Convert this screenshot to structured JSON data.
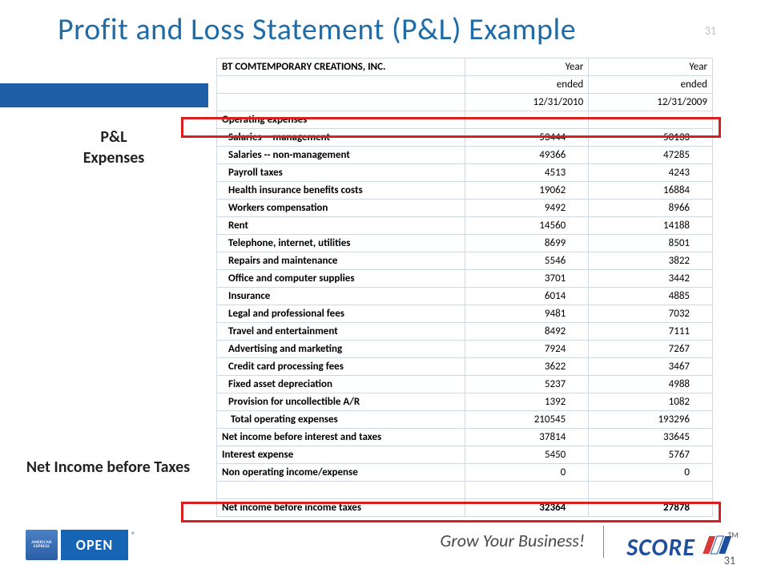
{
  "title": "Profit and Loss Statement (P&L) Example",
  "page_number": "31",
  "side_labels": {
    "expenses": "P&L\nExpenses",
    "netincome": "Net Income before Taxes"
  },
  "table": {
    "header_rows": [
      {
        "label": "BT COMTEMPORARY CREATIONS, INC.",
        "c1": "Year",
        "c2": "Year",
        "bold": true,
        "right": true
      },
      {
        "label": "",
        "c1": "ended",
        "c2": "ended",
        "right": true
      },
      {
        "label": "",
        "c1": "12/31/2010",
        "c2": "12/31/2009",
        "right": true
      }
    ],
    "section_header": "Operating expenses",
    "rows": [
      {
        "label": "Salaries -- management",
        "c1": "53444",
        "c2": "50133"
      },
      {
        "label": "Salaries -- non-management",
        "c1": "49366",
        "c2": "47285"
      },
      {
        "label": "Payroll taxes",
        "c1": "4513",
        "c2": "4243"
      },
      {
        "label": "Health insurance benefits costs",
        "c1": "19062",
        "c2": "16884"
      },
      {
        "label": "Workers compensation",
        "c1": "9492",
        "c2": "8966"
      },
      {
        "label": "Rent",
        "c1": "14560",
        "c2": "14188"
      },
      {
        "label": "Telephone, internet, utilities",
        "c1": "8699",
        "c2": "8501"
      },
      {
        "label": "Repairs and maintenance",
        "c1": "5546",
        "c2": "3822"
      },
      {
        "label": "Office and computer supplies",
        "c1": "3701",
        "c2": "3442"
      },
      {
        "label": "Insurance",
        "c1": "6014",
        "c2": "4885"
      },
      {
        "label": "Legal and professional fees",
        "c1": "9481",
        "c2": "7032"
      },
      {
        "label": "Travel and entertainment",
        "c1": "8492",
        "c2": "7111"
      },
      {
        "label": "Advertising and marketing",
        "c1": "7924",
        "c2": "7267"
      },
      {
        "label": "Credit card processing fees",
        "c1": "3622",
        "c2": "3467"
      },
      {
        "label": "Fixed asset depreciation",
        "c1": "5237",
        "c2": "4988"
      },
      {
        "label": "Provision for uncollectible A/R",
        "c1": "1392",
        "c2": "1082"
      },
      {
        "label": " Total operating expenses",
        "c1": "210545",
        "c2": "193296"
      }
    ],
    "post_rows": [
      {
        "label": "Net income before interest and taxes",
        "c1": "37814",
        "c2": "33645"
      },
      {
        "label": "Interest expense",
        "c1": "5450",
        "c2": "5767"
      },
      {
        "label": "Non operating income/expense",
        "c1": "0",
        "c2": "0"
      },
      {
        "label": "",
        "c1": "",
        "c2": ""
      }
    ],
    "footer_row": {
      "label": "Net income before income taxes",
      "c1": "32364",
      "c2": "27878"
    }
  },
  "footer": {
    "amex": "AMERICAN\nEXPRESS",
    "open": "OPEN",
    "grow": "Grow Your Business!",
    "score": "SCORE",
    "tm": "TM"
  },
  "colors": {
    "title": "#1f6ca8",
    "bluebar": "#1c5fa7",
    "redbox": "#d92020",
    "table_border": "#d0d8e0",
    "score_blue": "#1d4f9e",
    "score_red": "#d83a3a",
    "open_bg": "#1665b5"
  }
}
